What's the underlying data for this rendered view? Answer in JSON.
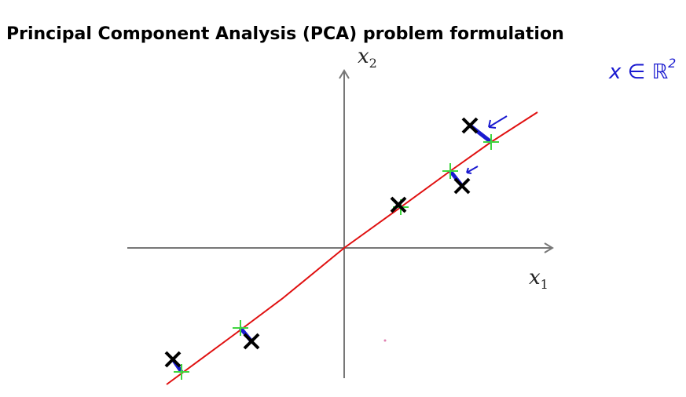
{
  "header": {
    "title": "Principal Component Analysis (PCA) problem formulation"
  },
  "axes": {
    "x_label": {
      "var": "x",
      "sub": "1"
    },
    "y_label": {
      "var": "x",
      "sub": "2"
    }
  },
  "annotation": {
    "text": "x ∈ ℝ",
    "sup": "2"
  }
}
